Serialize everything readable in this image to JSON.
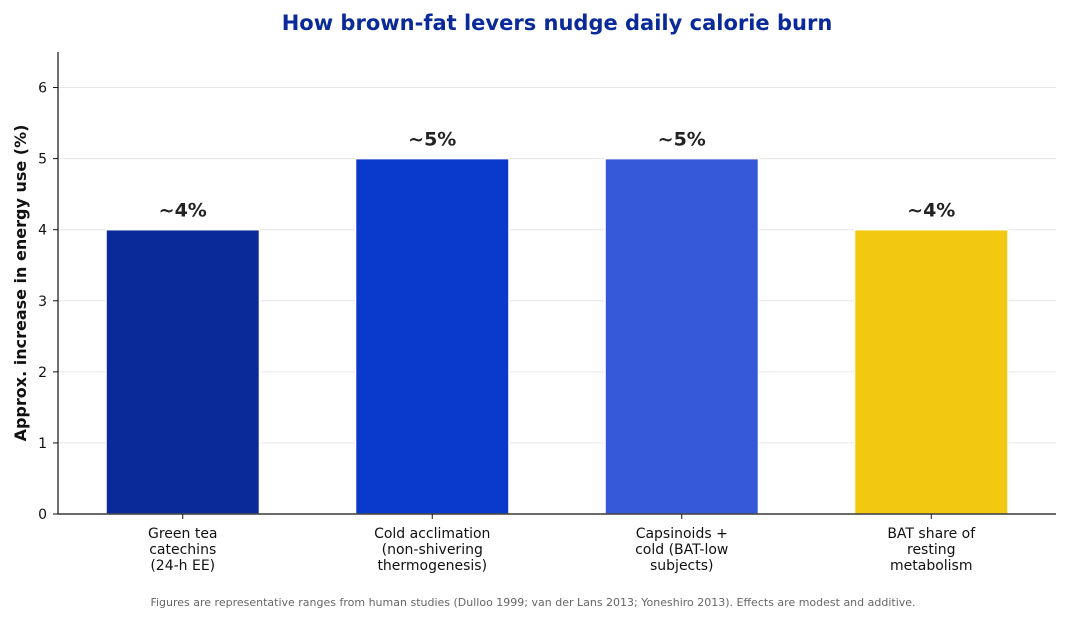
{
  "chart_data": {
    "type": "bar",
    "title": "How brown-fat levers nudge daily calorie burn",
    "ylabel": "Approx. increase in energy use (%)",
    "xlabel": "",
    "ylim": [
      0,
      6.5
    ],
    "yticks": [
      0,
      1,
      2,
      3,
      4,
      5,
      6
    ],
    "grid": "horizontal",
    "categories": [
      [
        "Green tea",
        "catechins",
        "(24-h EE)"
      ],
      [
        "Cold acclimation",
        "(non-shivering",
        "thermogenesis)"
      ],
      [
        "Capsinoids +",
        "cold (BAT-low",
        "subjects)"
      ],
      [
        "BAT share of",
        "resting",
        "metabolism"
      ]
    ],
    "values": [
      4,
      5,
      5,
      4
    ],
    "data_labels": [
      "~4%",
      "~5%",
      "~5%",
      "~4%"
    ],
    "bar_colors": [
      "#0a2a9a",
      "#0a3acc",
      "#3559d9",
      "#f2c811"
    ],
    "title_color": "#0a2a9a",
    "footnote": "Figures are representative ranges from human studies (Dulloo 1999; van der Lans 2013; Yoneshiro 2013). Effects are modest and additive."
  }
}
